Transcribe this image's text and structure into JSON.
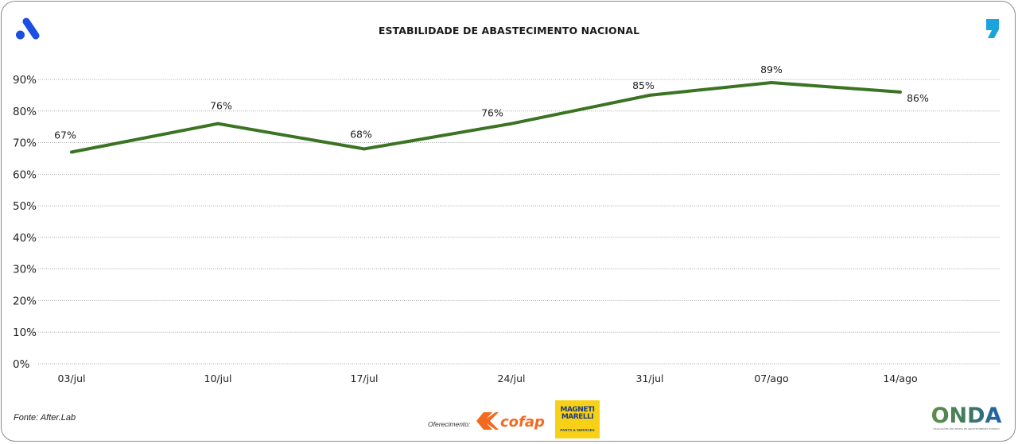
{
  "header": {
    "title": "ESTABILIDADE DE ABASTECIMENTO NACIONAL",
    "left_logo": "a-logo-icon",
    "right_logo": "comma-logo-icon"
  },
  "footer": {
    "source": "Fonte: After.Lab",
    "sponsor_label": "Oferecimento:",
    "sponsors": [
      "cofap",
      "MAGNETI MARELLI"
    ],
    "mm_line1": "MAGNETI",
    "mm_line2": "MARELLI",
    "mm_tagline": "PARTS & SERVICES",
    "cofap_text": "cofap",
    "onda_text": "ONDA",
    "onda_tagline": "OSCILAÇÕES NOS NÍVEIS DE ABASTECIMENTO E PREÇO"
  },
  "colors": {
    "line": "#3a7423",
    "brand_blue": "#1a4fe0",
    "comma_blue": "#1aa3dd",
    "cofap_orange": "#f26a21",
    "mm_yellow": "#f7d117"
  },
  "chart_data": {
    "type": "line",
    "title": "ESTABILIDADE DE ABASTECIMENTO NACIONAL",
    "xlabel": "",
    "ylabel": "",
    "categories": [
      "03/jul",
      "10/jul",
      "17/jul",
      "24/jul",
      "31/jul",
      "07/ago",
      "14/ago"
    ],
    "series": [
      {
        "name": "Estabilidade de abastecimento",
        "values": [
          67,
          76,
          68,
          76,
          85,
          89,
          86
        ]
      }
    ],
    "data_labels": [
      "67%",
      "76%",
      "68%",
      "76%",
      "85%",
      "89%",
      "86%"
    ],
    "yticks": [
      0,
      10,
      20,
      30,
      40,
      50,
      60,
      70,
      80,
      90
    ],
    "ytick_labels": [
      "0%",
      "10%",
      "20%",
      "30%",
      "40%",
      "50%",
      "60%",
      "70%",
      "80%",
      "90%"
    ],
    "ylim": [
      0,
      90
    ],
    "grid": true,
    "grid_style": "dotted",
    "legend": "none"
  }
}
